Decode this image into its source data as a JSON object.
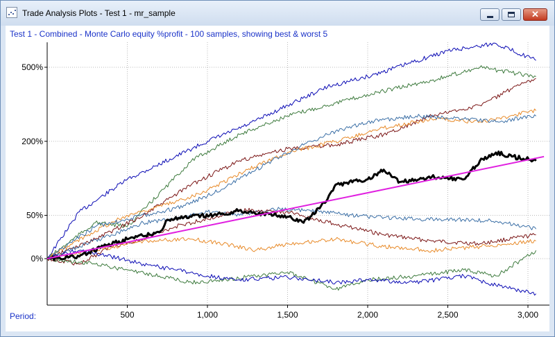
{
  "window": {
    "title": "Trade Analysis Plots - Test 1 - mr_sample"
  },
  "chart_data": {
    "type": "line",
    "title": "Test 1 - Combined - Monte Carlo equity %profit - 100 samples, showing best & worst 5",
    "xlabel": "Period:",
    "ylabel": "",
    "x_ticks": [
      "500",
      "1,000",
      "1,500",
      "2,000",
      "2,500",
      "3,000"
    ],
    "x_tick_values": [
      500,
      1000,
      1500,
      2000,
      2500,
      3000
    ],
    "y_ticks": [
      "0%",
      "50%",
      "200%",
      "500%"
    ],
    "y_tick_values": [
      0,
      50,
      200,
      500
    ],
    "y_scale": "log(1+p)",
    "xlim": [
      0,
      3100
    ],
    "grid": true,
    "series": [
      {
        "color": "#0a0ab4",
        "width": 1,
        "points": [
          [
            0,
            0
          ],
          [
            200,
            55
          ],
          [
            500,
            110
          ],
          [
            800,
            160
          ],
          [
            1000,
            200
          ],
          [
            1250,
            250
          ],
          [
            1500,
            320
          ],
          [
            1750,
            400
          ],
          [
            2000,
            450
          ],
          [
            2250,
            520
          ],
          [
            2500,
            600
          ],
          [
            2800,
            650
          ],
          [
            3050,
            540
          ]
        ]
      },
      {
        "color": "#3d7a3d",
        "width": 1,
        "points": [
          [
            0,
            0
          ],
          [
            300,
            40
          ],
          [
            500,
            35
          ],
          [
            900,
            150
          ],
          [
            1200,
            220
          ],
          [
            1500,
            280
          ],
          [
            1800,
            330
          ],
          [
            2100,
            380
          ],
          [
            2400,
            430
          ],
          [
            2700,
            500
          ],
          [
            2900,
            470
          ],
          [
            3050,
            450
          ]
        ]
      },
      {
        "color": "#7a1414",
        "width": 1,
        "points": [
          [
            0,
            0
          ],
          [
            300,
            20
          ],
          [
            600,
            50
          ],
          [
            900,
            100
          ],
          [
            1200,
            150
          ],
          [
            1500,
            180
          ],
          [
            1800,
            190
          ],
          [
            2100,
            220
          ],
          [
            2400,
            280
          ],
          [
            2700,
            320
          ],
          [
            2900,
            390
          ],
          [
            3050,
            440
          ]
        ]
      },
      {
        "color": "#e88a28",
        "width": 1,
        "points": [
          [
            0,
            0
          ],
          [
            300,
            30
          ],
          [
            500,
            50
          ],
          [
            800,
            70
          ],
          [
            1000,
            90
          ],
          [
            1250,
            130
          ],
          [
            1500,
            170
          ],
          [
            1800,
            200
          ],
          [
            2100,
            240
          ],
          [
            2400,
            270
          ],
          [
            2700,
            260
          ],
          [
            3050,
            300
          ]
        ]
      },
      {
        "color": "#3b6fa6",
        "width": 1,
        "points": [
          [
            0,
            0
          ],
          [
            300,
            35
          ],
          [
            500,
            45
          ],
          [
            800,
            60
          ],
          [
            1000,
            80
          ],
          [
            1200,
            110
          ],
          [
            1400,
            150
          ],
          [
            1600,
            190
          ],
          [
            1800,
            230
          ],
          [
            2000,
            260
          ],
          [
            2300,
            280
          ],
          [
            2600,
            270
          ],
          [
            2800,
            260
          ],
          [
            3050,
            280
          ]
        ]
      },
      {
        "color": "#3b6fa6",
        "width": 1,
        "points": [
          [
            0,
            0
          ],
          [
            200,
            12
          ],
          [
            400,
            25
          ],
          [
            600,
            40
          ],
          [
            800,
            45
          ],
          [
            1000,
            55
          ],
          [
            1200,
            50
          ],
          [
            1400,
            60
          ],
          [
            1700,
            55
          ],
          [
            2000,
            48
          ],
          [
            2300,
            45
          ],
          [
            2600,
            44
          ],
          [
            2800,
            42
          ],
          [
            3050,
            32
          ]
        ]
      },
      {
        "color": "#7a1414",
        "width": 1,
        "points": [
          [
            0,
            0
          ],
          [
            200,
            -5
          ],
          [
            400,
            12
          ],
          [
            600,
            20
          ],
          [
            800,
            35
          ],
          [
            1000,
            45
          ],
          [
            1200,
            58
          ],
          [
            1500,
            55
          ],
          [
            1800,
            38
          ],
          [
            2100,
            25
          ],
          [
            2400,
            18
          ],
          [
            2700,
            15
          ],
          [
            3050,
            25
          ]
        ]
      },
      {
        "color": "#e88a28",
        "width": 1,
        "points": [
          [
            0,
            0
          ],
          [
            300,
            8
          ],
          [
            600,
            18
          ],
          [
            900,
            20
          ],
          [
            1100,
            15
          ],
          [
            1300,
            8
          ],
          [
            1500,
            15
          ],
          [
            1800,
            20
          ],
          [
            2100,
            12
          ],
          [
            2400,
            8
          ],
          [
            2700,
            12
          ],
          [
            3050,
            18
          ]
        ]
      },
      {
        "color": "#3d7a3d",
        "width": 1,
        "points": [
          [
            0,
            0
          ],
          [
            300,
            -5
          ],
          [
            500,
            -10
          ],
          [
            700,
            -15
          ],
          [
            900,
            -20
          ],
          [
            1100,
            -18
          ],
          [
            1300,
            -15
          ],
          [
            1500,
            -12
          ],
          [
            1800,
            -25
          ],
          [
            2000,
            -18
          ],
          [
            2300,
            -15
          ],
          [
            2600,
            -10
          ],
          [
            2800,
            -15
          ],
          [
            3050,
            8
          ]
        ]
      },
      {
        "color": "#0a0ab4",
        "width": 1,
        "points": [
          [
            0,
            0
          ],
          [
            200,
            8
          ],
          [
            400,
            2
          ],
          [
            600,
            -5
          ],
          [
            800,
            -10
          ],
          [
            1000,
            -15
          ],
          [
            1200,
            -18
          ],
          [
            1500,
            -16
          ],
          [
            1800,
            -20
          ],
          [
            2000,
            -18
          ],
          [
            2300,
            -20
          ],
          [
            2600,
            -15
          ],
          [
            2800,
            -22
          ],
          [
            3050,
            -28
          ]
        ]
      },
      {
        "color": "#000000",
        "width": 3,
        "points": [
          [
            0,
            0
          ],
          [
            200,
            2
          ],
          [
            350,
            12
          ],
          [
            500,
            20
          ],
          [
            700,
            28
          ],
          [
            750,
            44
          ],
          [
            900,
            48
          ],
          [
            1100,
            52
          ],
          [
            1200,
            57
          ],
          [
            1350,
            52
          ],
          [
            1500,
            48
          ],
          [
            1600,
            40
          ],
          [
            1700,
            60
          ],
          [
            1750,
            75
          ],
          [
            1800,
            100
          ],
          [
            2000,
            110
          ],
          [
            2100,
            130
          ],
          [
            2200,
            105
          ],
          [
            2400,
            115
          ],
          [
            2600,
            110
          ],
          [
            2700,
            150
          ],
          [
            2800,
            170
          ],
          [
            2900,
            160
          ],
          [
            3050,
            150
          ]
        ]
      },
      {
        "color": "#e020e0",
        "width": 2,
        "points": [
          [
            0,
            0
          ],
          [
            3100,
            160
          ]
        ]
      }
    ]
  }
}
